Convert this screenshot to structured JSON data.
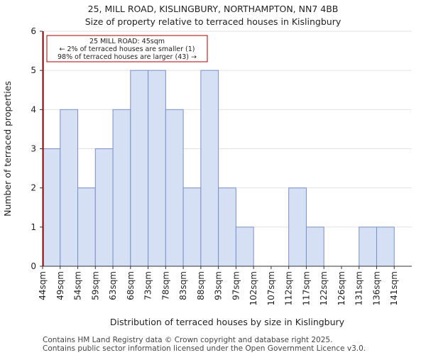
{
  "header": {
    "title": "25, MILL ROAD, KISLINGBURY, NORTHAMPTON, NN7 4BB",
    "subtitle": "Size of property relative to terraced houses in Kislingbury"
  },
  "footer": {
    "line1": "Contains HM Land Registry data © Crown copyright and database right 2025.",
    "line2": "Contains public sector information licensed under the Open Government Licence v3.0."
  },
  "chart_data": {
    "type": "bar",
    "title": "25, MILL ROAD, KISLINGBURY, NORTHAMPTON, NN7 4BB",
    "subtitle": "Size of property relative to terraced houses in Kislingbury",
    "xlabel": "Distribution of terraced houses by size in Kislingbury",
    "ylabel": "Number of terraced properties",
    "categories": [
      "44sqm",
      "49sqm",
      "54sqm",
      "59sqm",
      "63sqm",
      "68sqm",
      "73sqm",
      "78sqm",
      "83sqm",
      "88sqm",
      "93sqm",
      "97sqm",
      "102sqm",
      "107sqm",
      "112sqm",
      "117sqm",
      "122sqm",
      "126sqm",
      "131sqm",
      "136sqm",
      "141sqm"
    ],
    "values": [
      3,
      4,
      2,
      3,
      4,
      5,
      5,
      4,
      2,
      5,
      2,
      1,
      0,
      0,
      2,
      1,
      0,
      0,
      1,
      1,
      0
    ],
    "yticks": [
      0,
      1,
      2,
      3,
      4,
      5,
      6
    ],
    "ylim": [
      0,
      6
    ],
    "bar_color": "#d6e0f5",
    "bar_edge_color": "#7a90c4",
    "marker": {
      "label": "25 MILL ROAD: 45sqm",
      "value_sqm": 45,
      "line_color": "#aa0000"
    },
    "annotation": {
      "line1": "25 MILL ROAD: 45sqm",
      "line2": "← 2% of terraced houses are smaller (1)",
      "line3": "98% of terraced houses are larger (43) →"
    }
  }
}
